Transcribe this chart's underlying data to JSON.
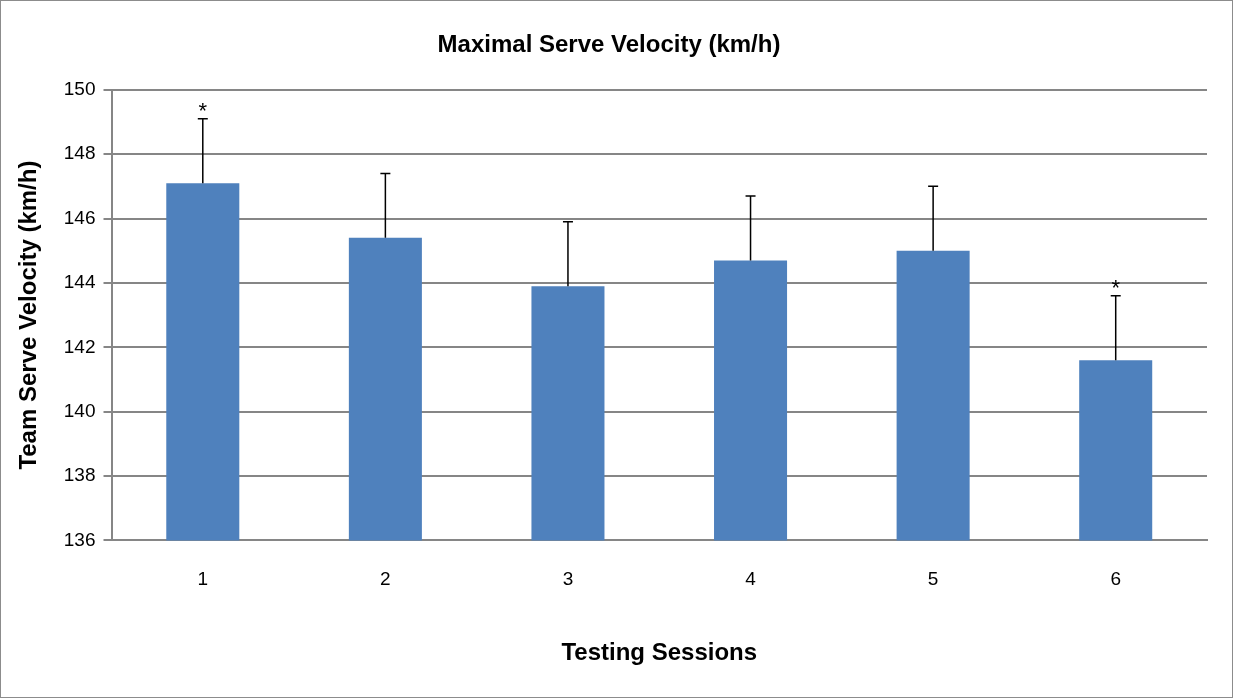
{
  "chart_data": {
    "type": "bar",
    "title": "Maximal Serve Velocity (km/h)",
    "xlabel": "Testing Sessions",
    "ylabel": "Team Serve Velocity (km/h)",
    "categories": [
      "1",
      "2",
      "3",
      "4",
      "5",
      "6"
    ],
    "values": [
      147.1,
      145.4,
      143.9,
      144.7,
      145.0,
      141.6
    ],
    "errors": [
      [
        147.1,
        149.1
      ],
      [
        145.4,
        147.4
      ],
      [
        143.9,
        145.9
      ],
      [
        144.7,
        146.7
      ],
      [
        145.0,
        147.0
      ],
      [
        141.6,
        143.6
      ]
    ],
    "color": "#4f81bd",
    "ylim": [
      136,
      150
    ],
    "yticks": [
      136,
      138,
      140,
      142,
      144,
      146,
      148,
      150
    ],
    "grid": "y",
    "legend": false,
    "annotations": [
      {
        "text": "*",
        "x": "1",
        "y": 149.1
      },
      {
        "text": "*",
        "x": "6",
        "y": 143.6
      }
    ]
  }
}
